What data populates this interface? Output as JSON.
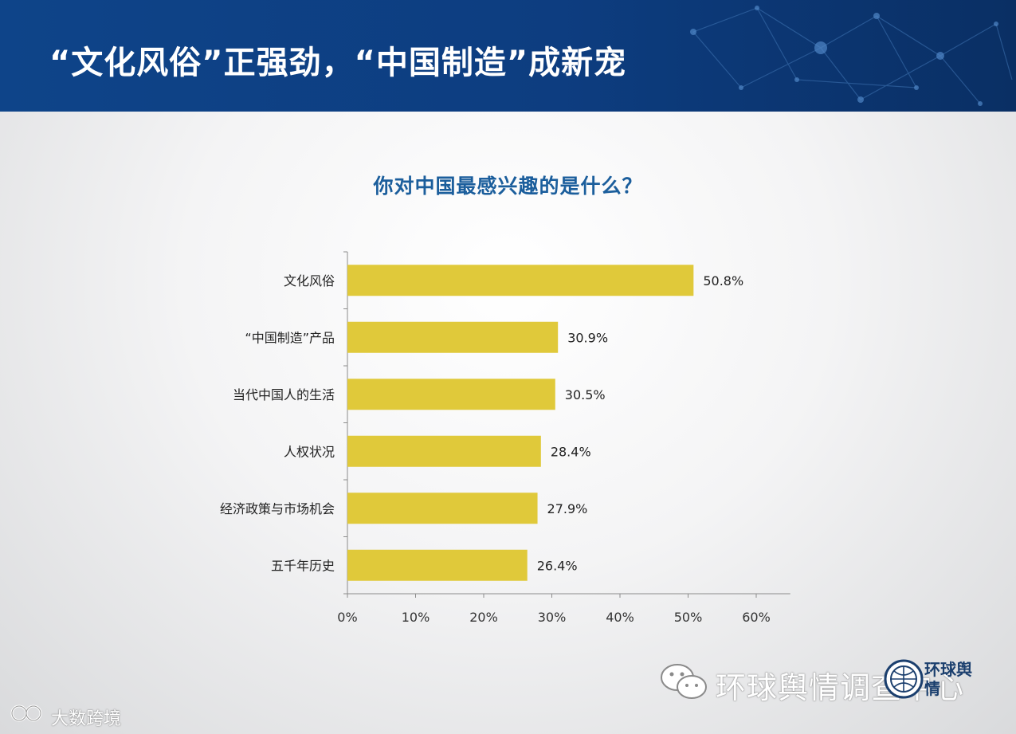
{
  "header": {
    "title": "“文化风俗”正强劲，“中国制造”成新宠"
  },
  "chart_data": {
    "type": "bar",
    "orientation": "horizontal",
    "title": "你对中国最感兴趣的是什么？",
    "categories": [
      "文化风俗",
      "“中国制造”产品",
      "当代中国人的生活",
      "人权状况",
      "经济政策与市场机会",
      "五千年历史"
    ],
    "values": [
      50.8,
      30.9,
      30.5,
      28.4,
      27.9,
      26.4
    ],
    "value_labels": [
      "50.8%",
      "30.9%",
      "30.5%",
      "28.4%",
      "27.9%",
      "26.4%"
    ],
    "x_ticks": [
      "0%",
      "10%",
      "20%",
      "30%",
      "40%",
      "50%",
      "60%"
    ],
    "xlim": [
      0,
      65
    ],
    "xlabel": "",
    "ylabel": "",
    "grid": false,
    "bar_color": "#e0c93a"
  },
  "watermarks": {
    "right_text": "环球舆情调查中心",
    "logo_text": "环球舆情",
    "left_text": "大数跨境"
  },
  "colors": {
    "header_bg": "#0e4489",
    "title_color": "#1b5e9c",
    "bar": "#e0c93a"
  }
}
